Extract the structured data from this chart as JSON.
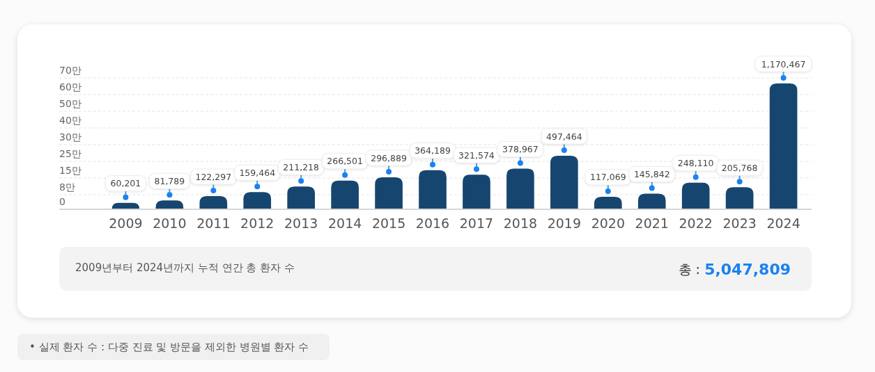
{
  "chart_data": {
    "type": "bar",
    "categories": [
      "2009",
      "2010",
      "2011",
      "2012",
      "2013",
      "2014",
      "2015",
      "2016",
      "2017",
      "2018",
      "2019",
      "2020",
      "2021",
      "2022",
      "2023",
      "2024"
    ],
    "values": [
      60201,
      81789,
      122297,
      159464,
      211218,
      266501,
      296889,
      364189,
      321574,
      378967,
      497464,
      117069,
      145842,
      248110,
      205768,
      1170467
    ],
    "value_labels": [
      "60,201",
      "81,789",
      "122,297",
      "159,464",
      "211,218",
      "266,501",
      "296,889",
      "364,189",
      "321,574",
      "378,967",
      "497,464",
      "117,069",
      "145,842",
      "248,110",
      "205,768",
      "1,170,467"
    ],
    "color": "#16466f",
    "grid": "y",
    "annotations": [
      "0",
      "8만",
      "15만",
      "25만",
      "30만",
      "40만",
      "50만",
      "60만",
      "70만",
      "2009년부터 2024년까지 누적 연간 총 환자 수",
      "총 :",
      "5,047,809",
      "• 실제 환자 수 : 다중 진료 및 방문을 제외한 병원별 환자 수"
    ]
  }
}
